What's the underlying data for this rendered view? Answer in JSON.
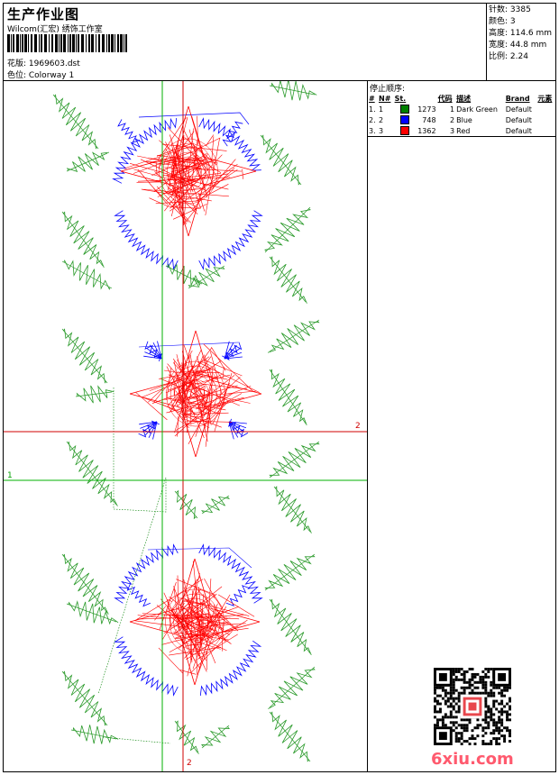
{
  "header": {
    "title": "生产作业图",
    "company": "Wilcom(汇宏) 绣饰工作室",
    "filename": "花版: 1969603.dst",
    "colorway": "色位: Colorway 1"
  },
  "info": {
    "stitches": "针数: 3385",
    "colors": "颜色: 3",
    "height": "高度: 114.6 mm",
    "width": "宽度: 44.8 mm",
    "ratio": "比例: 2.24"
  },
  "stop_sequence": {
    "title": "停止顺序:",
    "columns": [
      "#",
      "N#",
      "St.",
      "代码",
      "描述",
      "Brand",
      "元素"
    ],
    "rows": [
      {
        "idx": "1.",
        "n": "1",
        "color": "#008000",
        "st": "1273",
        "code": "1",
        "desc": "Dark Green",
        "brand": "Default"
      },
      {
        "idx": "2.",
        "n": "2",
        "color": "#0000ff",
        "st": "748",
        "code": "2",
        "desc": "Blue",
        "brand": "Default"
      },
      {
        "idx": "3.",
        "n": "3",
        "color": "#ff0000",
        "st": "1362",
        "code": "3",
        "desc": "Red",
        "brand": "Default"
      }
    ]
  },
  "axes": {
    "green_label": "1",
    "red_label_right": "2",
    "red_label_bottom": "2"
  },
  "watermark": "6xiu.com",
  "colors": {
    "green": "#2a9a2a",
    "blue": "#0000ff",
    "red": "#ff0000"
  }
}
